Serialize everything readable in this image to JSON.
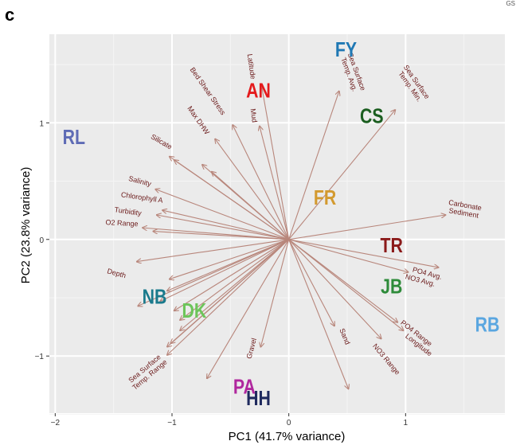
{
  "figure": {
    "panel_letter": "c",
    "corner_mark": "GS"
  },
  "chart_data": {
    "type": "scatter",
    "subtype": "pca-biplot",
    "title": "",
    "xlabel": "PC1 (41.7% variance)",
    "ylabel": "PC2 (23.8% variance)",
    "xlim": [
      -2.05,
      1.85
    ],
    "ylim": [
      -1.49,
      1.76
    ],
    "x_ticks": [
      -2,
      -1,
      0,
      1
    ],
    "y_ticks": [
      -1,
      0,
      1
    ],
    "x_tick_labels": [
      "−2",
      "−1",
      "0",
      "1"
    ],
    "y_tick_labels": [
      "−1",
      "0",
      "1"
    ],
    "grid": true,
    "background": "#ebebeb",
    "arrow_color": "#b8867b",
    "vector_label_color": "#6b1a1a",
    "sites": [
      {
        "label": "FY",
        "x": 0.49,
        "y": 1.63,
        "color": "#1f78b4"
      },
      {
        "label": "AN",
        "x": -0.26,
        "y": 1.28,
        "color": "#e41a1c"
      },
      {
        "label": "CS",
        "x": 0.71,
        "y": 1.06,
        "color": "#1b5e20"
      },
      {
        "label": "RL",
        "x": -1.84,
        "y": 0.88,
        "color": "#5e6bb5"
      },
      {
        "label": "FR",
        "x": 0.31,
        "y": 0.36,
        "color": "#d39a2f"
      },
      {
        "label": "TR",
        "x": 0.88,
        "y": -0.05,
        "color": "#8b1a1a"
      },
      {
        "label": "JB",
        "x": 0.88,
        "y": -0.4,
        "color": "#2e8b3a"
      },
      {
        "label": "NB",
        "x": -1.15,
        "y": -0.49,
        "color": "#1a7a8c"
      },
      {
        "label": "DK",
        "x": -0.81,
        "y": -0.61,
        "color": "#6cc55a"
      },
      {
        "label": "RB",
        "x": 1.7,
        "y": -0.73,
        "color": "#5aa6e0"
      },
      {
        "label": "PA",
        "x": -0.38,
        "y": -1.26,
        "color": "#b0279e"
      },
      {
        "label": "HH",
        "x": -0.26,
        "y": -1.36,
        "color": "#1f2a5e"
      }
    ],
    "loadings": [
      {
        "label": "Latitude",
        "x": -0.23,
        "y": 1.3,
        "text_x": -0.34,
        "text_y": 1.48,
        "rot": 82
      },
      {
        "label": "Mud",
        "x": -0.25,
        "y": 0.97,
        "text_x": -0.32,
        "text_y": 1.06,
        "rot": 82
      },
      {
        "label": "Bed Shear Stress",
        "x": -0.48,
        "y": 0.98,
        "text_x": -0.71,
        "text_y": 1.26,
        "rot": 55
      },
      {
        "label": "Max DHW",
        "x": -0.63,
        "y": 0.86,
        "text_x": -0.79,
        "text_y": 1.01,
        "rot": 55
      },
      {
        "label": "Silicate",
        "x": -1.02,
        "y": 0.71,
        "text_x": -1.1,
        "text_y": 0.82,
        "rot": 30
      },
      {
        "label": "",
        "x": -0.98,
        "y": 0.68
      },
      {
        "label": "",
        "x": -0.74,
        "y": 0.64
      },
      {
        "label": "",
        "x": -0.66,
        "y": 0.58
      },
      {
        "label": "Salinity",
        "x": -1.14,
        "y": 0.43,
        "text_x": -1.28,
        "text_y": 0.48,
        "rot": 15
      },
      {
        "label": "Chlorophyll A",
        "x": -1.08,
        "y": 0.25,
        "text_x": -1.26,
        "text_y": 0.34,
        "rot": 8
      },
      {
        "label": "Turbidity",
        "x": -1.13,
        "y": 0.21,
        "text_x": -1.38,
        "text_y": 0.22,
        "rot": 8
      },
      {
        "label": "O2 Range",
        "x": -1.25,
        "y": 0.1,
        "text_x": -1.43,
        "text_y": 0.12,
        "rot": 3
      },
      {
        "label": "",
        "x": -1.16,
        "y": 0.07
      },
      {
        "label": "",
        "x": -1.3,
        "y": -0.19
      },
      {
        "label": "",
        "x": -1.02,
        "y": -0.34
      },
      {
        "label": "Depth",
        "x": -1.04,
        "y": -0.44,
        "text_x": -1.48,
        "text_y": -0.31,
        "rot": 15
      },
      {
        "label": "",
        "x": -1.1,
        "y": -0.53
      },
      {
        "label": "",
        "x": -0.98,
        "y": -0.61
      },
      {
        "label": "",
        "x": -0.93,
        "y": -0.69
      },
      {
        "label": "",
        "x": -1.29,
        "y": -0.57
      },
      {
        "label": "",
        "x": -0.93,
        "y": -0.78
      },
      {
        "label": "",
        "x": -1.01,
        "y": -0.89
      },
      {
        "label": "",
        "x": -1.04,
        "y": -0.92
      },
      {
        "label": "Sea Surface\nTemp. Range",
        "x": -1.04,
        "y": -0.99,
        "text_x": -1.2,
        "text_y": -1.15,
        "rot": -40
      },
      {
        "label": "",
        "x": -0.7,
        "y": -1.19
      },
      {
        "label": "Gravel",
        "x": -0.24,
        "y": -0.92,
        "text_x": -0.3,
        "text_y": -0.94,
        "rot": -75
      },
      {
        "label": "Sand",
        "x": 0.39,
        "y": -0.74,
        "text_x": 0.46,
        "text_y": -0.84,
        "rot": 68
      },
      {
        "label": "",
        "x": 0.51,
        "y": -1.28
      },
      {
        "label": "NO3 Range",
        "x": 0.79,
        "y": -0.85,
        "text_x": 0.82,
        "text_y": -1.04,
        "rot": 50
      },
      {
        "label": "Longitude",
        "x": 0.98,
        "y": -0.78,
        "text_x": 1.1,
        "text_y": -0.92,
        "rot": 38
      },
      {
        "label": "PO4 Range",
        "x": 0.93,
        "y": -0.71,
        "text_x": 1.08,
        "text_y": -0.82,
        "rot": 38
      },
      {
        "label": "PO4 Avg.",
        "x": 1.28,
        "y": -0.24,
        "text_x": 1.18,
        "text_y": -0.31,
        "rot": 15
      },
      {
        "label": "NO3 Avg.",
        "x": 1.02,
        "y": -0.28,
        "text_x": 1.12,
        "text_y": -0.37,
        "rot": 15
      },
      {
        "label": "Carbonate\nSediment",
        "x": 1.34,
        "y": 0.21,
        "text_x": 1.5,
        "text_y": 0.24,
        "rot": 10
      },
      {
        "label": "Sea Surface\nTemp. Avg.",
        "x": 0.43,
        "y": 1.27,
        "text_x": 0.53,
        "text_y": 1.42,
        "rot": 70
      },
      {
        "label": "Sea Surface\nTemp. Min.",
        "x": 0.91,
        "y": 1.11,
        "text_x": 1.05,
        "text_y": 1.32,
        "rot": 55
      }
    ]
  }
}
